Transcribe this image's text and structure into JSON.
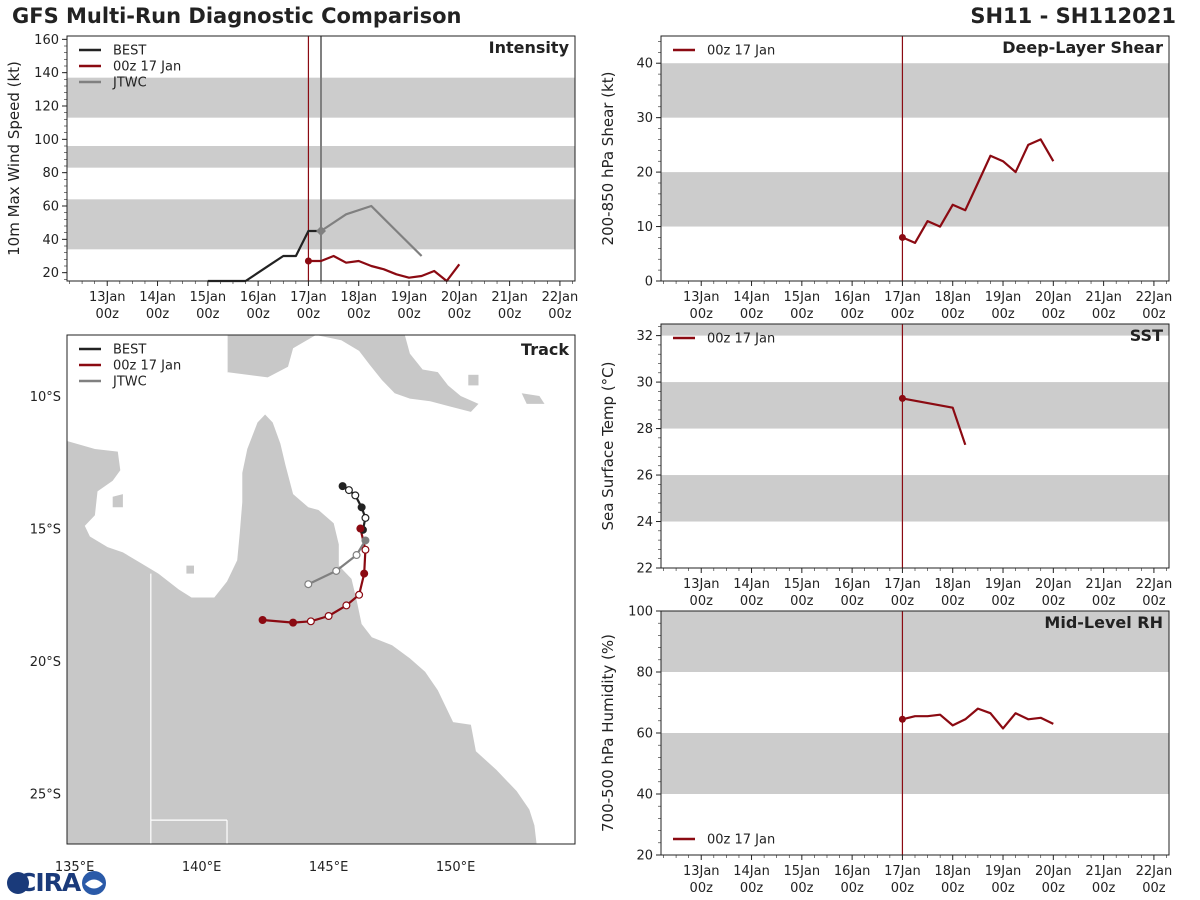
{
  "header": {
    "title": "GFS Multi-Run Diagnostic Comparison",
    "storm_id": "SH11 - SH112021"
  },
  "logo": {
    "text": "CIRA"
  },
  "colors": {
    "best": "#222222",
    "model": "#8b0a12",
    "jtwc": "#808080",
    "band": "#cccccc",
    "land": "#c8c8c8"
  },
  "time_axis": {
    "ticks": [
      {
        "line1": "13Jan",
        "line2": "00z"
      },
      {
        "line1": "14Jan",
        "line2": "00z"
      },
      {
        "line1": "15Jan",
        "line2": "00z"
      },
      {
        "line1": "16Jan",
        "line2": "00z"
      },
      {
        "line1": "17Jan",
        "line2": "00z"
      },
      {
        "line1": "18Jan",
        "line2": "00z"
      },
      {
        "line1": "19Jan",
        "line2": "00z"
      },
      {
        "line1": "20Jan",
        "line2": "00z"
      },
      {
        "line1": "21Jan",
        "line2": "00z"
      },
      {
        "line1": "22Jan",
        "line2": "00z"
      }
    ],
    "range_days": [
      12.2,
      22.3
    ],
    "init_day": 17
  },
  "chart_data": [
    {
      "id": "intensity",
      "type": "line",
      "title": "Intensity",
      "ylabel": "10m Max Wind Speed (kt)",
      "ylim": [
        15,
        162
      ],
      "yticks": [
        20,
        40,
        60,
        80,
        100,
        120,
        140,
        160
      ],
      "bands": [
        [
          34,
          64
        ],
        [
          83,
          96
        ],
        [
          113,
          137
        ]
      ],
      "legend": [
        "BEST",
        "00z 17 Jan",
        "JTWC"
      ],
      "series": [
        {
          "name": "BEST",
          "x": [
            15,
            15.25,
            15.5,
            15.75,
            16,
            16.25,
            16.5,
            16.75,
            17,
            17.25
          ],
          "y": [
            15,
            15,
            15,
            15,
            20,
            25,
            30,
            30,
            45,
            45
          ]
        },
        {
          "name": "00z 17 Jan",
          "x": [
            17,
            17.25,
            17.5,
            17.75,
            18,
            18.25,
            18.5,
            18.75,
            19,
            19.25,
            19.5,
            19.75,
            20
          ],
          "y": [
            27,
            27,
            30,
            26,
            27,
            24,
            22,
            19,
            17,
            18,
            21,
            15,
            25
          ],
          "marker_at_start": true
        },
        {
          "name": "JTWC",
          "x": [
            17.25,
            17.75,
            18.25,
            18.75,
            19.25
          ],
          "y": [
            45,
            55,
            60,
            45,
            30
          ]
        }
      ],
      "vlines": [
        {
          "x": 17,
          "kind": "model"
        },
        {
          "x": 17.25,
          "kind": "jtwc"
        }
      ]
    },
    {
      "id": "shear",
      "type": "line",
      "title": "Deep-Layer Shear",
      "ylabel": "200-850 hPa Shear (kt)",
      "ylim": [
        0,
        45
      ],
      "yticks": [
        0,
        10,
        20,
        30,
        40
      ],
      "bands": [
        [
          10,
          20
        ],
        [
          30,
          40
        ]
      ],
      "legend": [
        "00z 17 Jan"
      ],
      "series": [
        {
          "name": "00z 17 Jan",
          "x": [
            17,
            17.25,
            17.5,
            17.75,
            18,
            18.25,
            18.5,
            18.75,
            19,
            19.25,
            19.5,
            19.75,
            20
          ],
          "y": [
            8,
            7,
            11,
            10,
            14,
            13,
            18,
            23,
            22,
            20,
            25,
            26,
            22
          ],
          "marker_at_start": true
        }
      ],
      "vlines": [
        {
          "x": 17,
          "kind": "model"
        }
      ]
    },
    {
      "id": "sst",
      "type": "line",
      "title": "SST",
      "ylabel": "Sea Surface Temp (°C)",
      "ylim": [
        22,
        32.5
      ],
      "yticks": [
        22,
        24,
        26,
        28,
        30,
        32
      ],
      "bands": [
        [
          24,
          26
        ],
        [
          28,
          30
        ],
        [
          32,
          32.5
        ]
      ],
      "legend": [
        "00z 17 Jan"
      ],
      "series": [
        {
          "name": "00z 17 Jan",
          "x": [
            17,
            18,
            18.25
          ],
          "y": [
            29.3,
            28.9,
            27.3
          ],
          "marker_at_start": true
        }
      ],
      "vlines": [
        {
          "x": 17,
          "kind": "model"
        }
      ]
    },
    {
      "id": "rh",
      "type": "line",
      "title": "Mid-Level RH",
      "ylabel": "700-500 hPa Humidity (%)",
      "ylim": [
        20,
        100
      ],
      "yticks": [
        20,
        40,
        60,
        80,
        100
      ],
      "bands": [
        [
          40,
          60
        ],
        [
          80,
          100
        ]
      ],
      "legend": [
        "00z 17 Jan"
      ],
      "legend_position": "bottom-left",
      "series": [
        {
          "name": "00z 17 Jan",
          "x": [
            17,
            17.25,
            17.5,
            17.75,
            18,
            18.25,
            18.5,
            18.75,
            19,
            19.25,
            19.5,
            19.75,
            20
          ],
          "y": [
            64.5,
            65.5,
            65.5,
            66,
            62.5,
            64.5,
            68,
            66.5,
            61.5,
            66.5,
            64.5,
            65,
            63
          ],
          "marker_at_start": true
        }
      ],
      "vlines": [
        {
          "x": 17,
          "kind": "model"
        }
      ]
    },
    {
      "id": "track",
      "type": "scatter",
      "title": "Track",
      "legend": [
        "BEST",
        "00z 17 Jan",
        "JTWC"
      ],
      "lon_range": [
        134.7,
        154.7
      ],
      "lat_range": [
        -26.9,
        -7.7
      ],
      "lon_ticks": [
        {
          "v": 135,
          "label": "135°E"
        },
        {
          "v": 140,
          "label": "140°E"
        },
        {
          "v": 145,
          "label": "145°E"
        },
        {
          "v": 150,
          "label": "150°E"
        }
      ],
      "lat_ticks": [
        {
          "v": -10,
          "label": "10°S"
        },
        {
          "v": -15,
          "label": "15°S"
        },
        {
          "v": -20,
          "label": "20°S"
        },
        {
          "v": -25,
          "label": "25°S"
        }
      ],
      "series": [
        {
          "name": "BEST",
          "lon": [
            145.55,
            145.8,
            146.05,
            146.3,
            146.45,
            146.35
          ],
          "lat": [
            -13.4,
            -13.55,
            -13.75,
            -14.2,
            -14.6,
            -15.05
          ],
          "filled": [
            true,
            false,
            false,
            true,
            false,
            true
          ]
        },
        {
          "name": "00z 17 Jan",
          "lon": [
            146.25,
            146.45,
            146.4,
            146.2,
            145.7,
            145.0,
            144.3,
            143.6,
            142.4
          ],
          "lat": [
            -15.0,
            -15.8,
            -16.7,
            -17.5,
            -17.9,
            -18.3,
            -18.5,
            -18.55,
            -18.45
          ],
          "filled": [
            true,
            false,
            true,
            false,
            false,
            false,
            false,
            true,
            true
          ]
        },
        {
          "name": "JTWC",
          "lon": [
            146.45,
            146.1,
            145.3,
            144.2
          ],
          "lat": [
            -15.45,
            -16.0,
            -16.6,
            -17.1
          ],
          "filled": [
            true,
            false,
            false,
            false
          ]
        }
      ]
    }
  ]
}
